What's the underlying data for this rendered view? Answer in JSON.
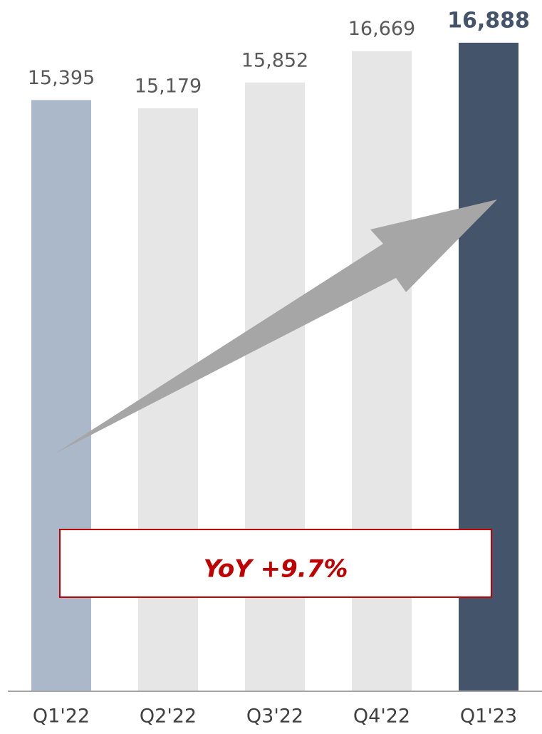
{
  "chart_data": {
    "type": "bar",
    "categories": [
      "Q1'22",
      "Q2'22",
      "Q3'22",
      "Q4'22",
      "Q1'23"
    ],
    "values": [
      15395,
      15179,
      15852,
      16669,
      16888
    ],
    "value_labels": [
      "15,395",
      "15,179",
      "15,852",
      "16,669",
      "16,888"
    ],
    "colors": [
      "#abb8c9",
      "#e6e6e6",
      "#e6e6e6",
      "#e6e6e6",
      "#44546a"
    ],
    "ylim": [
      0,
      18000
    ],
    "annotation": "YoY +9.7%"
  }
}
